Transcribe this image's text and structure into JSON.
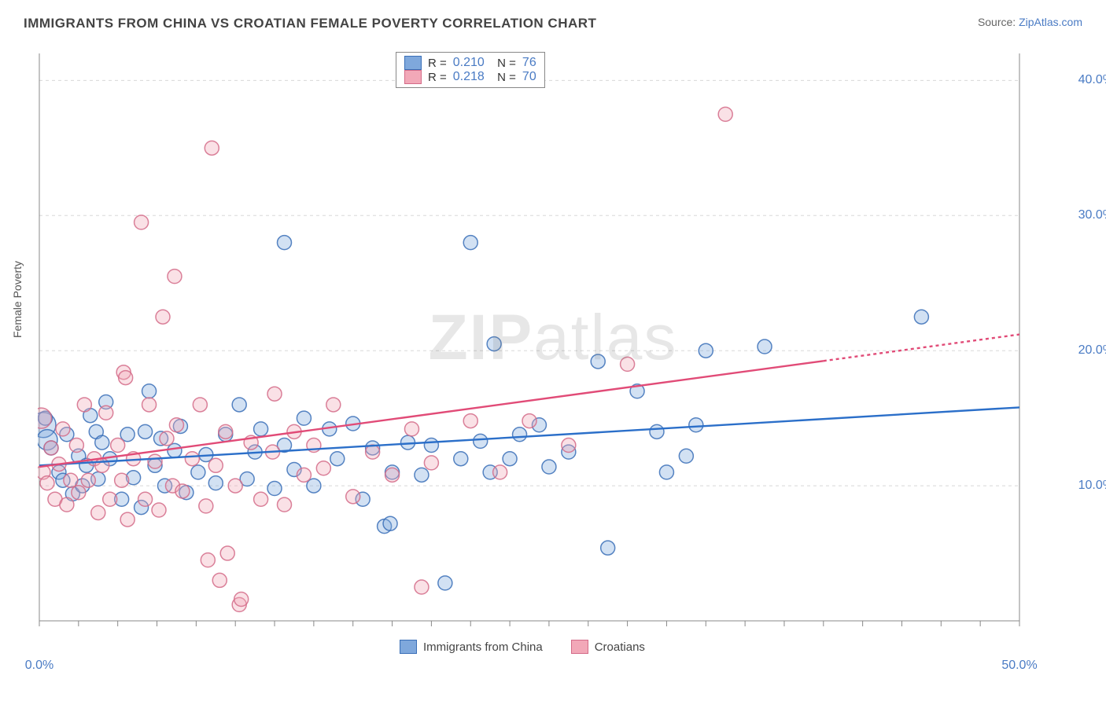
{
  "title": "IMMIGRANTS FROM CHINA VS CROATIAN FEMALE POVERTY CORRELATION CHART",
  "source_label": "Source:",
  "source_name": "ZipAtlas.com",
  "watermark": "ZIPatlas",
  "chart": {
    "type": "scatter",
    "xlim": [
      0,
      50
    ],
    "ylim": [
      0,
      42
    ],
    "x_tick_labels": [
      {
        "x": 0,
        "label": "0.0%"
      },
      {
        "x": 50,
        "label": "50.0%"
      }
    ],
    "y_tick_labels": [
      {
        "y": 10,
        "label": "10.0%"
      },
      {
        "y": 20,
        "label": "20.0%"
      },
      {
        "y": 30,
        "label": "30.0%"
      },
      {
        "y": 40,
        "label": "40.0%"
      }
    ],
    "x_minor_ticks": [
      0,
      2,
      4,
      6,
      8,
      10,
      12,
      14,
      16,
      18,
      20,
      22,
      24,
      26,
      28,
      30,
      32,
      34,
      36,
      38,
      40,
      42,
      44,
      46,
      48,
      50
    ],
    "y_axis_label": "Female Poverty",
    "grid_color": "#d8d8d8",
    "axis_color": "#888888",
    "background_color": "#ffffff",
    "marker_radius": 9,
    "marker_radius_large": 16,
    "marker_fill_opacity": 0.35,
    "marker_stroke_opacity": 0.85,
    "trend_line_width": 2.4,
    "trend_dash_extension": "4 4",
    "series": [
      {
        "name": "Immigrants from China",
        "color": "#7fa8dc",
        "stroke": "#3a6fb7",
        "trend_color": "#2b6fc9",
        "r_value": "0.210",
        "n_value": "76",
        "trend": {
          "x1": 0,
          "y1": 11.5,
          "x2": 50,
          "y2": 15.8,
          "dash_from_x": null
        },
        "points": [
          {
            "x": 0.2,
            "y": 14.5,
            "r": 16
          },
          {
            "x": 0.4,
            "y": 13.4,
            "r": 13
          },
          {
            "x": 0.3,
            "y": 15.0
          },
          {
            "x": 0.6,
            "y": 12.8
          },
          {
            "x": 1.0,
            "y": 11.0
          },
          {
            "x": 1.2,
            "y": 10.4
          },
          {
            "x": 1.4,
            "y": 13.8
          },
          {
            "x": 1.7,
            "y": 9.4
          },
          {
            "x": 2.0,
            "y": 12.2
          },
          {
            "x": 2.2,
            "y": 10.0
          },
          {
            "x": 2.4,
            "y": 11.5
          },
          {
            "x": 2.6,
            "y": 15.2
          },
          {
            "x": 2.9,
            "y": 14.0
          },
          {
            "x": 3.0,
            "y": 10.5
          },
          {
            "x": 3.2,
            "y": 13.2
          },
          {
            "x": 3.4,
            "y": 16.2
          },
          {
            "x": 3.6,
            "y": 12.0
          },
          {
            "x": 4.2,
            "y": 9.0
          },
          {
            "x": 4.5,
            "y": 13.8
          },
          {
            "x": 4.8,
            "y": 10.6
          },
          {
            "x": 5.2,
            "y": 8.4
          },
          {
            "x": 5.4,
            "y": 14.0
          },
          {
            "x": 5.6,
            "y": 17.0
          },
          {
            "x": 5.9,
            "y": 11.5
          },
          {
            "x": 6.2,
            "y": 13.5
          },
          {
            "x": 6.4,
            "y": 10.0
          },
          {
            "x": 6.9,
            "y": 12.6
          },
          {
            "x": 7.2,
            "y": 14.4
          },
          {
            "x": 7.5,
            "y": 9.5
          },
          {
            "x": 8.1,
            "y": 11.0
          },
          {
            "x": 8.5,
            "y": 12.3
          },
          {
            "x": 9.0,
            "y": 10.2
          },
          {
            "x": 9.5,
            "y": 13.8
          },
          {
            "x": 10.2,
            "y": 16.0
          },
          {
            "x": 10.6,
            "y": 10.5
          },
          {
            "x": 11.0,
            "y": 12.5
          },
          {
            "x": 11.3,
            "y": 14.2
          },
          {
            "x": 12.0,
            "y": 9.8
          },
          {
            "x": 12.5,
            "y": 13.0
          },
          {
            "x": 12.5,
            "y": 28.0
          },
          {
            "x": 13.0,
            "y": 11.2
          },
          {
            "x": 13.5,
            "y": 15.0
          },
          {
            "x": 14.0,
            "y": 10.0
          },
          {
            "x": 14.8,
            "y": 14.2
          },
          {
            "x": 15.2,
            "y": 12.0
          },
          {
            "x": 16.0,
            "y": 14.6
          },
          {
            "x": 16.5,
            "y": 9.0
          },
          {
            "x": 17.0,
            "y": 12.8
          },
          {
            "x": 17.6,
            "y": 7.0
          },
          {
            "x": 17.9,
            "y": 7.2
          },
          {
            "x": 18.0,
            "y": 11.0
          },
          {
            "x": 18.8,
            "y": 13.2
          },
          {
            "x": 19.5,
            "y": 10.8
          },
          {
            "x": 20.0,
            "y": 13.0
          },
          {
            "x": 20.7,
            "y": 2.8
          },
          {
            "x": 21.5,
            "y": 12.0
          },
          {
            "x": 22.0,
            "y": 28.0
          },
          {
            "x": 22.5,
            "y": 13.3
          },
          {
            "x": 23.0,
            "y": 11.0
          },
          {
            "x": 23.2,
            "y": 20.5
          },
          {
            "x": 24.0,
            "y": 12.0
          },
          {
            "x": 24.5,
            "y": 13.8
          },
          {
            "x": 25.5,
            "y": 14.5
          },
          {
            "x": 26.0,
            "y": 11.4
          },
          {
            "x": 27.0,
            "y": 12.5
          },
          {
            "x": 28.5,
            "y": 19.2
          },
          {
            "x": 29.0,
            "y": 5.4
          },
          {
            "x": 30.5,
            "y": 17.0
          },
          {
            "x": 31.5,
            "y": 14.0
          },
          {
            "x": 32.0,
            "y": 11.0
          },
          {
            "x": 33.0,
            "y": 12.2
          },
          {
            "x": 33.5,
            "y": 14.5
          },
          {
            "x": 34.0,
            "y": 20.0
          },
          {
            "x": 37.0,
            "y": 20.3
          },
          {
            "x": 45.0,
            "y": 22.5
          }
        ]
      },
      {
        "name": "Croatians",
        "color": "#f2a8b8",
        "stroke": "#d46b88",
        "trend_color": "#e14b77",
        "r_value": "0.218",
        "n_value": "70",
        "trend": {
          "x1": 0,
          "y1": 11.4,
          "x2": 50,
          "y2": 21.2,
          "dash_from_x": 40
        },
        "points": [
          {
            "x": 0.1,
            "y": 15.0,
            "r": 13
          },
          {
            "x": 0.2,
            "y": 11.0
          },
          {
            "x": 0.4,
            "y": 10.2
          },
          {
            "x": 0.6,
            "y": 12.8
          },
          {
            "x": 0.8,
            "y": 9.0
          },
          {
            "x": 1.0,
            "y": 11.6
          },
          {
            "x": 1.2,
            "y": 14.2
          },
          {
            "x": 1.4,
            "y": 8.6
          },
          {
            "x": 1.6,
            "y": 10.4
          },
          {
            "x": 1.9,
            "y": 13.0
          },
          {
            "x": 2.0,
            "y": 9.5
          },
          {
            "x": 2.3,
            "y": 16.0
          },
          {
            "x": 2.5,
            "y": 10.4
          },
          {
            "x": 2.8,
            "y": 12.0
          },
          {
            "x": 3.0,
            "y": 8.0
          },
          {
            "x": 3.2,
            "y": 11.5
          },
          {
            "x": 3.4,
            "y": 15.4
          },
          {
            "x": 3.6,
            "y": 9.0
          },
          {
            "x": 4.0,
            "y": 13.0
          },
          {
            "x": 4.2,
            "y": 10.4
          },
          {
            "x": 4.3,
            "y": 18.4
          },
          {
            "x": 4.4,
            "y": 18.0
          },
          {
            "x": 4.5,
            "y": 7.5
          },
          {
            "x": 4.8,
            "y": 12.0
          },
          {
            "x": 5.2,
            "y": 29.5
          },
          {
            "x": 5.4,
            "y": 9.0
          },
          {
            "x": 5.6,
            "y": 16.0
          },
          {
            "x": 5.9,
            "y": 11.8
          },
          {
            "x": 6.1,
            "y": 8.2
          },
          {
            "x": 6.3,
            "y": 22.5
          },
          {
            "x": 6.5,
            "y": 13.5
          },
          {
            "x": 6.8,
            "y": 10.0
          },
          {
            "x": 6.9,
            "y": 25.5
          },
          {
            "x": 7.0,
            "y": 14.5
          },
          {
            "x": 7.3,
            "y": 9.6
          },
          {
            "x": 7.8,
            "y": 12.0
          },
          {
            "x": 8.2,
            "y": 16.0
          },
          {
            "x": 8.5,
            "y": 8.5
          },
          {
            "x": 8.6,
            "y": 4.5
          },
          {
            "x": 8.8,
            "y": 35.0
          },
          {
            "x": 9.0,
            "y": 11.5
          },
          {
            "x": 9.2,
            "y": 3.0
          },
          {
            "x": 9.5,
            "y": 14.0
          },
          {
            "x": 9.6,
            "y": 5.0
          },
          {
            "x": 10.0,
            "y": 10.0
          },
          {
            "x": 10.2,
            "y": 1.2
          },
          {
            "x": 10.3,
            "y": 1.6
          },
          {
            "x": 10.8,
            "y": 13.2
          },
          {
            "x": 11.3,
            "y": 9.0
          },
          {
            "x": 11.9,
            "y": 12.5
          },
          {
            "x": 12.0,
            "y": 16.8
          },
          {
            "x": 12.5,
            "y": 8.6
          },
          {
            "x": 13.0,
            "y": 14.0
          },
          {
            "x": 13.5,
            "y": 10.8
          },
          {
            "x": 14.0,
            "y": 13.0
          },
          {
            "x": 14.5,
            "y": 11.3
          },
          {
            "x": 15.0,
            "y": 16.0
          },
          {
            "x": 16.0,
            "y": 9.2
          },
          {
            "x": 17.0,
            "y": 12.5
          },
          {
            "x": 18.0,
            "y": 10.8
          },
          {
            "x": 19.0,
            "y": 14.2
          },
          {
            "x": 19.5,
            "y": 2.5
          },
          {
            "x": 20.0,
            "y": 11.7
          },
          {
            "x": 22.0,
            "y": 14.8
          },
          {
            "x": 23.5,
            "y": 11.0
          },
          {
            "x": 25.0,
            "y": 14.8
          },
          {
            "x": 27.0,
            "y": 13.0
          },
          {
            "x": 30.0,
            "y": 19.0
          },
          {
            "x": 35.0,
            "y": 37.5
          }
        ]
      }
    ]
  }
}
